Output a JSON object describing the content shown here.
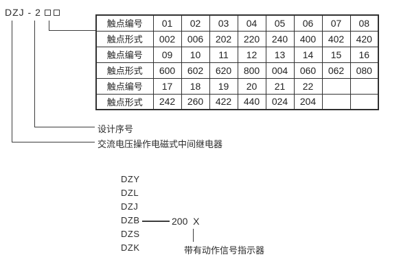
{
  "title": {
    "model": "DZJ - 2",
    "placeholder_boxes": 2
  },
  "table": {
    "rows": [
      {
        "label": "触点编号",
        "values": [
          "01",
          "02",
          "03",
          "04",
          "05",
          "06",
          "07",
          "08"
        ]
      },
      {
        "label": "触点形式",
        "values": [
          "002",
          "006",
          "202",
          "220",
          "240",
          "400",
          "402",
          "420"
        ]
      },
      {
        "label": "触点编号",
        "values": [
          "09",
          "10",
          "11",
          "12",
          "13",
          "14",
          "15",
          "16"
        ]
      },
      {
        "label": "触点形式",
        "values": [
          "600",
          "602",
          "620",
          "800",
          "004",
          "060",
          "062",
          "080"
        ]
      },
      {
        "label": "触点编号",
        "values": [
          "17",
          "18",
          "19",
          "20",
          "21",
          "22",
          "",
          ""
        ]
      },
      {
        "label": "触点形式",
        "values": [
          "242",
          "260",
          "422",
          "440",
          "024",
          "204",
          "",
          ""
        ]
      }
    ]
  },
  "callouts": {
    "design_serial": "设计序号",
    "relay_description": "交流电压操作电磁式中间继电器"
  },
  "series_list": {
    "models": [
      "DZY",
      "DZL",
      "DZJ",
      "DZB",
      "DZS",
      "DZK"
    ],
    "dzb_value": "200  X",
    "annotation": "带有动作信号指示器"
  },
  "colors": {
    "ink": "#3a3a3a",
    "text": "#2b2b2b",
    "background": "#ffffff"
  }
}
